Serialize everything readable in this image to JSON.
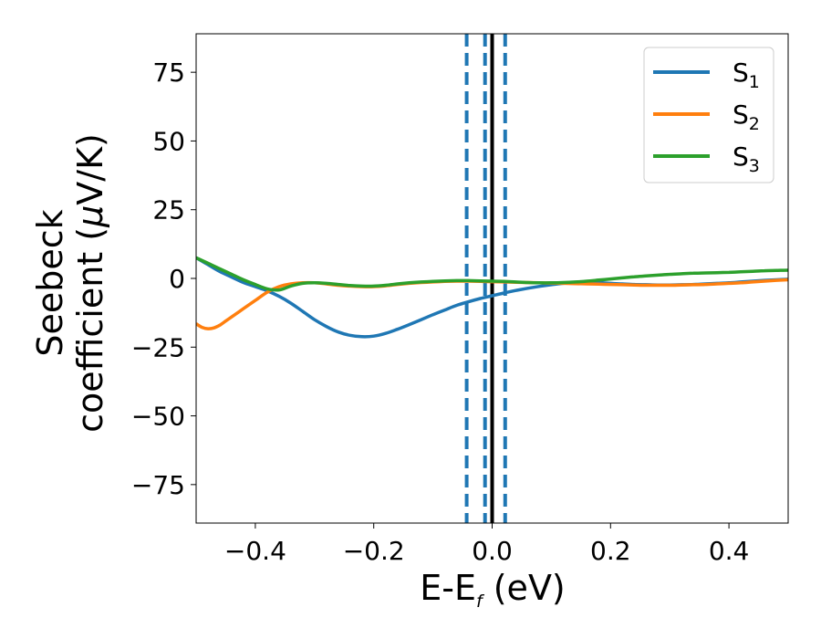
{
  "chart_data": {
    "type": "line",
    "xlabel": "E-E",
    "xlabel_sub": "f",
    "xlabel_unit": " (eV)",
    "ylabel_line1": "Seebeck",
    "ylabel_line2": "coefficient  (",
    "ylabel_mu": "μ",
    "ylabel_unit": "V/K)",
    "xlim": [
      -0.5,
      0.5
    ],
    "ylim": [
      -89,
      89
    ],
    "xticks": [
      -0.4,
      -0.2,
      0.0,
      0.2,
      0.4
    ],
    "xtick_labels": [
      "−0.4",
      "−0.2",
      "0.0",
      "0.2",
      "0.4"
    ],
    "yticks": [
      75,
      50,
      25,
      0,
      -25,
      -50,
      -75
    ],
    "ytick_labels": [
      "75",
      "50",
      "25",
      "0",
      "−25",
      "−50",
      "−75"
    ],
    "grid": false,
    "legend_position": "top-right",
    "vlines": [
      {
        "x": -0.043,
        "style": "dashed",
        "color": "#1f77b4"
      },
      {
        "x": -0.012,
        "style": "dashed",
        "color": "#1f77b4"
      },
      {
        "x": 0.0,
        "style": "solid",
        "color": "#000000"
      },
      {
        "x": 0.022,
        "style": "dashed",
        "color": "#1f77b4"
      }
    ],
    "series": [
      {
        "name": "S",
        "name_sub": "1",
        "color": "#1f77b4",
        "x": [
          -0.5,
          -0.48,
          -0.46,
          -0.44,
          -0.42,
          -0.4,
          -0.38,
          -0.36,
          -0.34,
          -0.32,
          -0.3,
          -0.28,
          -0.26,
          -0.24,
          -0.22,
          -0.2,
          -0.18,
          -0.16,
          -0.14,
          -0.12,
          -0.1,
          -0.08,
          -0.06,
          -0.04,
          -0.02,
          0.0,
          0.02,
          0.04,
          0.06,
          0.08,
          0.1,
          0.12,
          0.14,
          0.16,
          0.18,
          0.2,
          0.22,
          0.24,
          0.26,
          0.28,
          0.3,
          0.32,
          0.34,
          0.36,
          0.38,
          0.4,
          0.42,
          0.44,
          0.46,
          0.48,
          0.5
        ],
        "values": [
          7.5,
          5.0,
          2.5,
          0.5,
          -1.5,
          -3.0,
          -4.5,
          -6.5,
          -9.0,
          -12.0,
          -15.0,
          -17.5,
          -19.5,
          -20.7,
          -21.2,
          -21.0,
          -20.0,
          -18.5,
          -16.8,
          -15.0,
          -13.2,
          -11.5,
          -9.8,
          -8.5,
          -7.3,
          -6.3,
          -5.3,
          -4.4,
          -3.6,
          -2.9,
          -2.3,
          -1.8,
          -1.5,
          -1.4,
          -1.5,
          -1.8,
          -2.0,
          -2.2,
          -2.3,
          -2.4,
          -2.4,
          -2.3,
          -2.2,
          -2.0,
          -1.8,
          -1.6,
          -1.3,
          -1.0,
          -0.7,
          -0.5,
          -0.3
        ]
      },
      {
        "name": "S",
        "name_sub": "2",
        "color": "#ff7f0e",
        "x": [
          -0.5,
          -0.49,
          -0.48,
          -0.47,
          -0.46,
          -0.45,
          -0.44,
          -0.42,
          -0.4,
          -0.38,
          -0.36,
          -0.34,
          -0.32,
          -0.3,
          -0.28,
          -0.26,
          -0.24,
          -0.22,
          -0.2,
          -0.18,
          -0.16,
          -0.14,
          -0.12,
          -0.1,
          -0.08,
          -0.06,
          -0.04,
          -0.02,
          0.0,
          0.02,
          0.04,
          0.06,
          0.08,
          0.1,
          0.12,
          0.14,
          0.16,
          0.18,
          0.2,
          0.22,
          0.24,
          0.26,
          0.28,
          0.3,
          0.32,
          0.34,
          0.36,
          0.38,
          0.4,
          0.42,
          0.44,
          0.46,
          0.48,
          0.5
        ],
        "values": [
          -16.5,
          -17.8,
          -18.3,
          -18.0,
          -17.0,
          -15.5,
          -14.0,
          -11.0,
          -8.0,
          -5.0,
          -3.0,
          -2.0,
          -1.6,
          -1.6,
          -2.0,
          -2.5,
          -2.8,
          -3.0,
          -3.0,
          -2.7,
          -2.2,
          -1.8,
          -1.5,
          -1.3,
          -1.1,
          -1.0,
          -1.0,
          -1.1,
          -1.2,
          -1.3,
          -1.4,
          -1.5,
          -1.6,
          -1.7,
          -1.8,
          -1.9,
          -2.0,
          -2.1,
          -2.2,
          -2.3,
          -2.4,
          -2.5,
          -2.5,
          -2.5,
          -2.4,
          -2.3,
          -2.2,
          -2.0,
          -1.8,
          -1.6,
          -1.3,
          -1.0,
          -0.7,
          -0.5
        ]
      },
      {
        "name": "S",
        "name_sub": "3",
        "color": "#2ca02c",
        "x": [
          -0.5,
          -0.48,
          -0.46,
          -0.44,
          -0.42,
          -0.4,
          -0.38,
          -0.36,
          -0.34,
          -0.32,
          -0.3,
          -0.28,
          -0.26,
          -0.24,
          -0.22,
          -0.2,
          -0.18,
          -0.16,
          -0.14,
          -0.12,
          -0.1,
          -0.08,
          -0.06,
          -0.04,
          -0.02,
          0.0,
          0.02,
          0.04,
          0.06,
          0.08,
          0.1,
          0.12,
          0.14,
          0.16,
          0.18,
          0.2,
          0.22,
          0.24,
          0.26,
          0.28,
          0.3,
          0.32,
          0.34,
          0.36,
          0.38,
          0.4,
          0.42,
          0.44,
          0.46,
          0.48,
          0.5
        ],
        "values": [
          7.5,
          5.5,
          3.5,
          1.5,
          -0.5,
          -2.2,
          -3.8,
          -4.2,
          -2.8,
          -1.8,
          -1.6,
          -1.8,
          -2.2,
          -2.6,
          -2.8,
          -2.8,
          -2.5,
          -2.0,
          -1.6,
          -1.3,
          -1.1,
          -0.9,
          -0.8,
          -0.8,
          -0.9,
          -1.0,
          -1.1,
          -1.3,
          -1.5,
          -1.6,
          -1.6,
          -1.5,
          -1.3,
          -1.0,
          -0.6,
          -0.2,
          0.2,
          0.6,
          0.9,
          1.2,
          1.5,
          1.7,
          1.9,
          2.0,
          2.1,
          2.2,
          2.4,
          2.6,
          2.8,
          2.9,
          3.0
        ]
      }
    ]
  }
}
